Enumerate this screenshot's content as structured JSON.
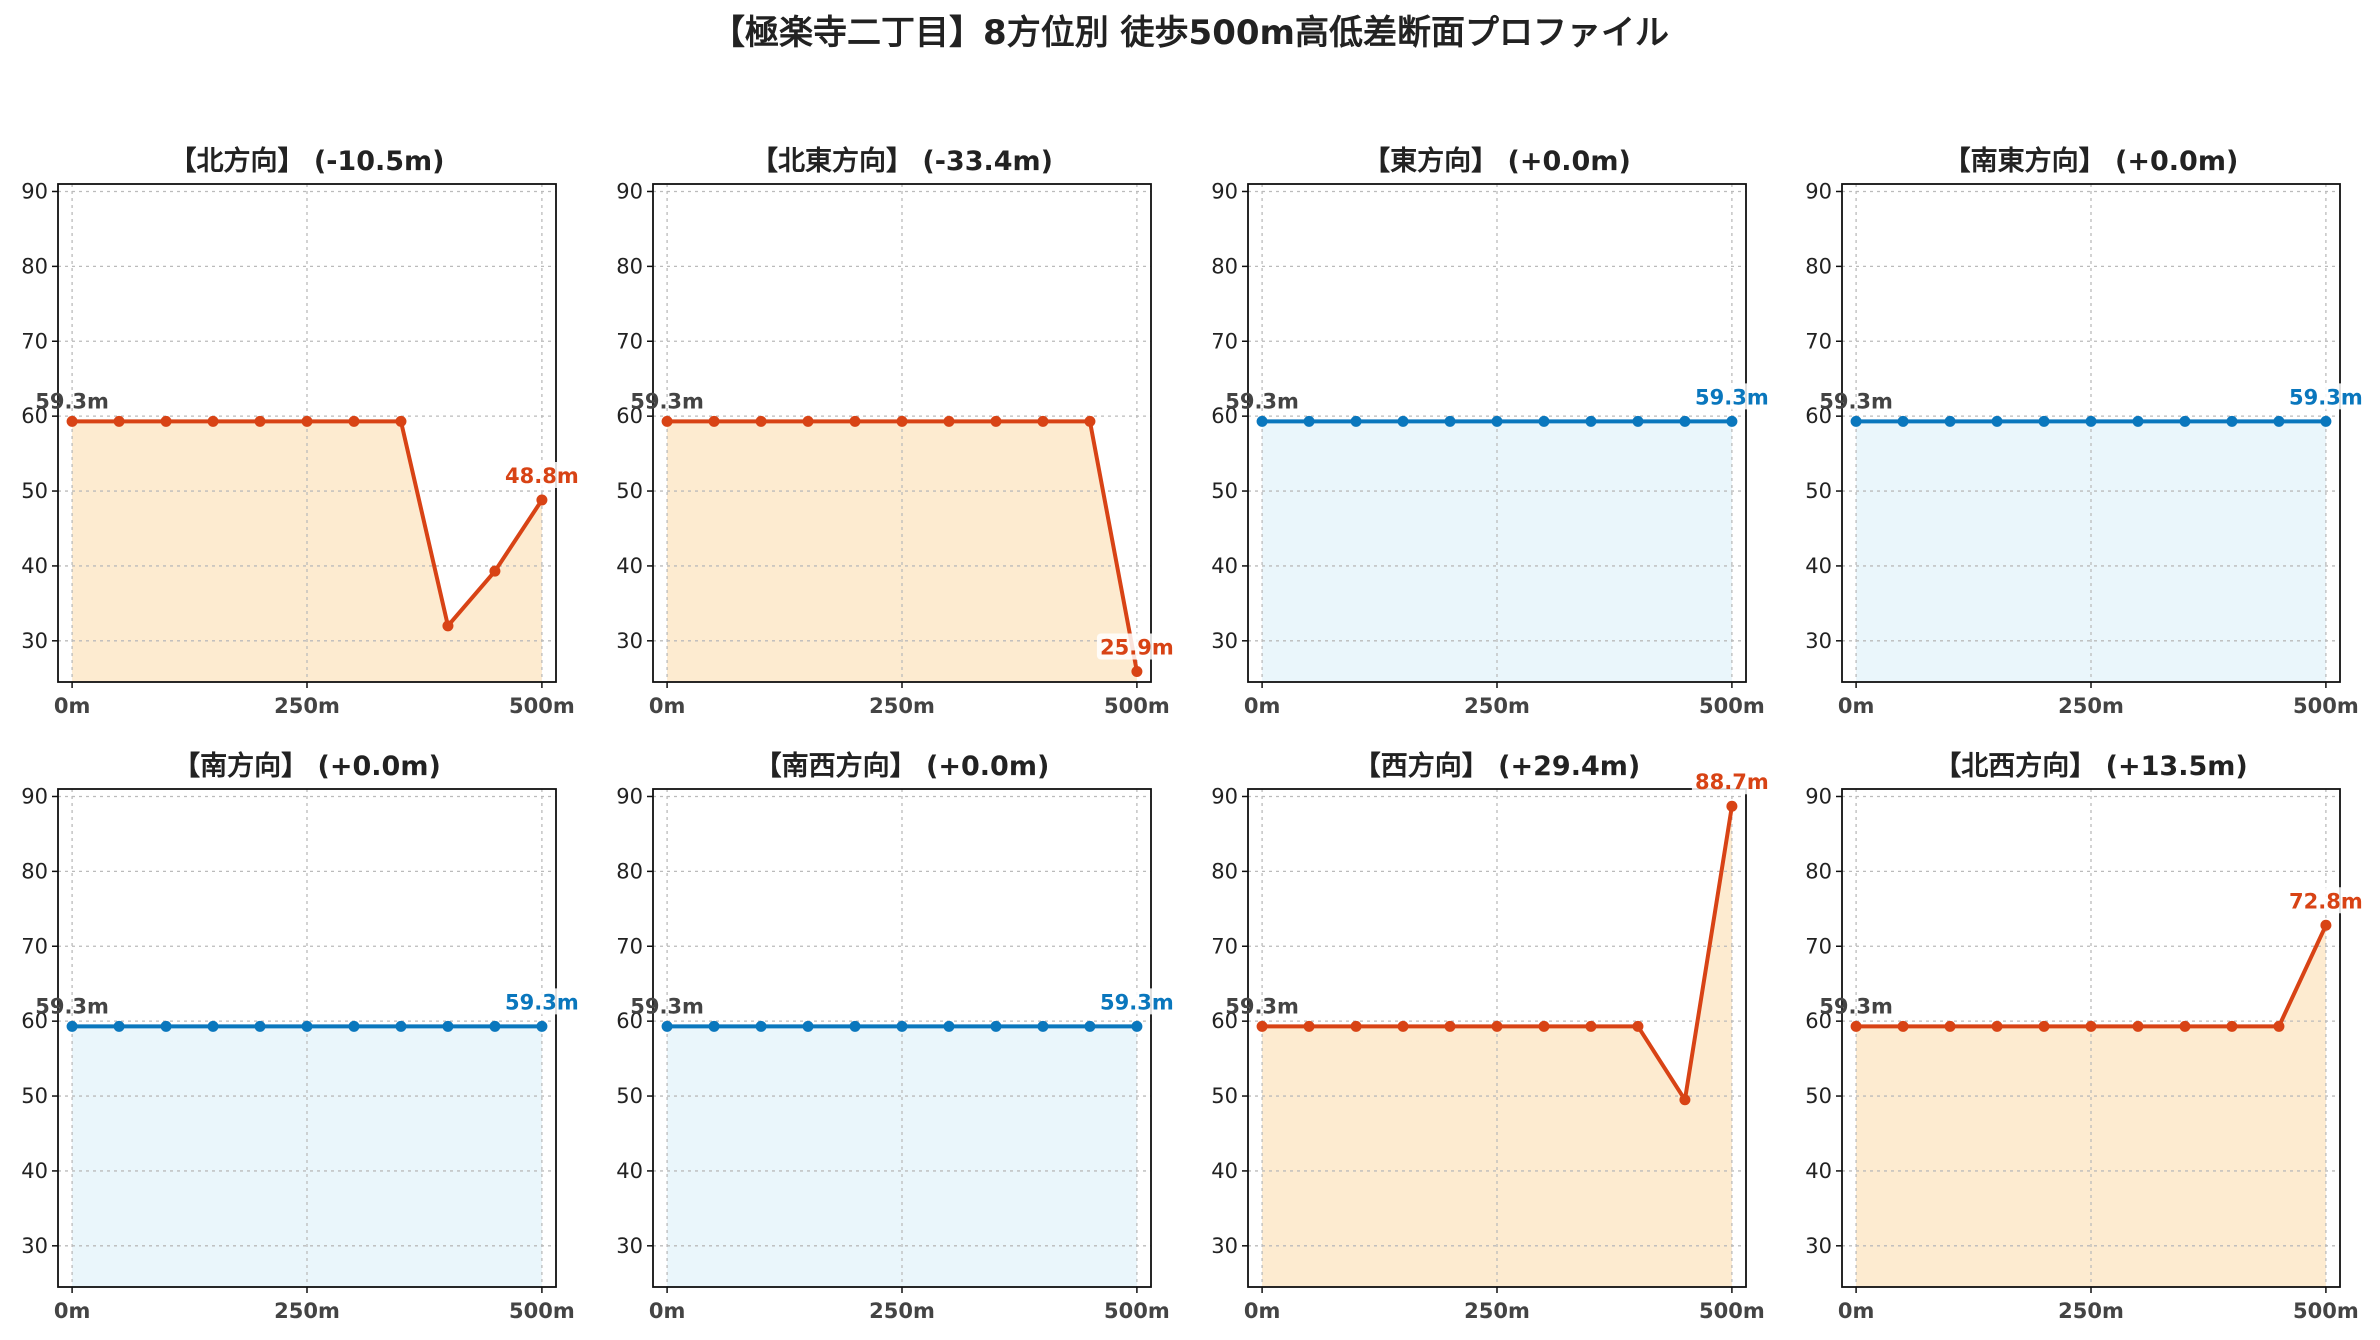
{
  "title": "【極楽寺二丁目】8方位別 徒歩500m高低差断面プロファイル",
  "colors": {
    "rise_fall_line": "#d84315",
    "rise_fall_fill": "#fdebd0",
    "flat_line": "#0a77bd",
    "flat_fill": "#eaf6fb",
    "start_label": "#444444",
    "grid": "#bbbbbb"
  },
  "chart_data": [
    {
      "type": "line",
      "title": "【北方向】 (-10.5m)",
      "x": [
        0,
        50,
        100,
        150,
        200,
        250,
        300,
        350,
        400,
        450,
        500
      ],
      "y": [
        59.3,
        59.3,
        59.3,
        59.3,
        59.3,
        59.3,
        59.3,
        59.3,
        32.0,
        39.3,
        48.8
      ],
      "xticks": [
        "0m",
        "250m",
        "500m"
      ],
      "yticks": [
        30,
        40,
        50,
        60,
        70,
        80,
        90
      ],
      "xlim": [
        -15,
        515
      ],
      "ylim": [
        24.5,
        91
      ],
      "start_label": "59.3m",
      "end_label": "48.8m",
      "style": "change",
      "grid": true
    },
    {
      "type": "line",
      "title": "【北東方向】 (-33.4m)",
      "x": [
        0,
        50,
        100,
        150,
        200,
        250,
        300,
        350,
        400,
        450,
        500
      ],
      "y": [
        59.3,
        59.3,
        59.3,
        59.3,
        59.3,
        59.3,
        59.3,
        59.3,
        59.3,
        59.3,
        25.9
      ],
      "xticks": [
        "0m",
        "250m",
        "500m"
      ],
      "yticks": [
        30,
        40,
        50,
        60,
        70,
        80,
        90
      ],
      "xlim": [
        -15,
        515
      ],
      "ylim": [
        24.5,
        91
      ],
      "start_label": "59.3m",
      "end_label": "25.9m",
      "style": "change",
      "grid": true
    },
    {
      "type": "line",
      "title": "【東方向】 (+0.0m)",
      "x": [
        0,
        50,
        100,
        150,
        200,
        250,
        300,
        350,
        400,
        450,
        500
      ],
      "y": [
        59.3,
        59.3,
        59.3,
        59.3,
        59.3,
        59.3,
        59.3,
        59.3,
        59.3,
        59.3,
        59.3
      ],
      "xticks": [
        "0m",
        "250m",
        "500m"
      ],
      "yticks": [
        30,
        40,
        50,
        60,
        70,
        80,
        90
      ],
      "xlim": [
        -15,
        515
      ],
      "ylim": [
        24.5,
        91
      ],
      "start_label": "59.3m",
      "end_label": "59.3m",
      "style": "flat",
      "grid": true
    },
    {
      "type": "line",
      "title": "【南東方向】 (+0.0m)",
      "x": [
        0,
        50,
        100,
        150,
        200,
        250,
        300,
        350,
        400,
        450,
        500
      ],
      "y": [
        59.3,
        59.3,
        59.3,
        59.3,
        59.3,
        59.3,
        59.3,
        59.3,
        59.3,
        59.3,
        59.3
      ],
      "xticks": [
        "0m",
        "250m",
        "500m"
      ],
      "yticks": [
        30,
        40,
        50,
        60,
        70,
        80,
        90
      ],
      "xlim": [
        -15,
        515
      ],
      "ylim": [
        24.5,
        91
      ],
      "start_label": "59.3m",
      "end_label": "59.3m",
      "style": "flat",
      "grid": true
    },
    {
      "type": "line",
      "title": "【南方向】 (+0.0m)",
      "x": [
        0,
        50,
        100,
        150,
        200,
        250,
        300,
        350,
        400,
        450,
        500
      ],
      "y": [
        59.3,
        59.3,
        59.3,
        59.3,
        59.3,
        59.3,
        59.3,
        59.3,
        59.3,
        59.3,
        59.3
      ],
      "xticks": [
        "0m",
        "250m",
        "500m"
      ],
      "yticks": [
        30,
        40,
        50,
        60,
        70,
        80,
        90
      ],
      "xlim": [
        -15,
        515
      ],
      "ylim": [
        24.5,
        91
      ],
      "start_label": "59.3m",
      "end_label": "59.3m",
      "style": "flat",
      "grid": true
    },
    {
      "type": "line",
      "title": "【南西方向】 (+0.0m)",
      "x": [
        0,
        50,
        100,
        150,
        200,
        250,
        300,
        350,
        400,
        450,
        500
      ],
      "y": [
        59.3,
        59.3,
        59.3,
        59.3,
        59.3,
        59.3,
        59.3,
        59.3,
        59.3,
        59.3,
        59.3
      ],
      "xticks": [
        "0m",
        "250m",
        "500m"
      ],
      "yticks": [
        30,
        40,
        50,
        60,
        70,
        80,
        90
      ],
      "xlim": [
        -15,
        515
      ],
      "ylim": [
        24.5,
        91
      ],
      "start_label": "59.3m",
      "end_label": "59.3m",
      "style": "flat",
      "grid": true
    },
    {
      "type": "line",
      "title": "【西方向】 (+29.4m)",
      "x": [
        0,
        50,
        100,
        150,
        200,
        250,
        300,
        350,
        400,
        450,
        500
      ],
      "y": [
        59.3,
        59.3,
        59.3,
        59.3,
        59.3,
        59.3,
        59.3,
        59.3,
        59.3,
        49.5,
        88.7
      ],
      "xticks": [
        "0m",
        "250m",
        "500m"
      ],
      "yticks": [
        30,
        40,
        50,
        60,
        70,
        80,
        90
      ],
      "xlim": [
        -15,
        515
      ],
      "ylim": [
        24.5,
        91
      ],
      "start_label": "59.3m",
      "end_label": "88.7m",
      "style": "change",
      "grid": true
    },
    {
      "type": "line",
      "title": "【北西方向】 (+13.5m)",
      "x": [
        0,
        50,
        100,
        150,
        200,
        250,
        300,
        350,
        400,
        450,
        500
      ],
      "y": [
        59.3,
        59.3,
        59.3,
        59.3,
        59.3,
        59.3,
        59.3,
        59.3,
        59.3,
        59.3,
        72.8
      ],
      "xticks": [
        "0m",
        "250m",
        "500m"
      ],
      "yticks": [
        30,
        40,
        50,
        60,
        70,
        80,
        90
      ],
      "xlim": [
        -15,
        515
      ],
      "ylim": [
        24.5,
        91
      ],
      "start_label": "59.3m",
      "end_label": "72.8m",
      "style": "change",
      "grid": true
    }
  ]
}
